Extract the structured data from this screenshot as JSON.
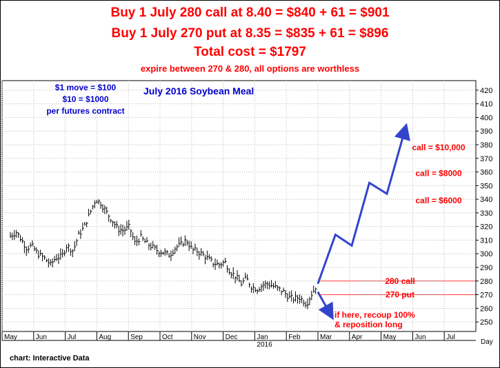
{
  "header": {
    "line1": "Buy 1 July 280 call at 8.40 = $840 + 61 = $901",
    "line2": "Buy 1 July 270 put at 8.35 = $835 + 61 = $896",
    "line3": "Total cost = $1797",
    "line4": "expire between 270 & 280, all options are worthless"
  },
  "footer": {
    "credit": "chart: Interactive Data"
  },
  "colors": {
    "red": "#ff0000",
    "blue": "#0000cc",
    "arrow": "#3344cc",
    "grid": "#b8b8b8"
  },
  "chart_data": {
    "type": "ohlc",
    "title": "July 2016 Soybean Meal",
    "note_lines": [
      "$1 move = $100",
      "$10 = $1000",
      "per futures contract"
    ],
    "y_ticks": [
      250,
      260,
      270,
      280,
      290,
      300,
      310,
      320,
      330,
      340,
      350,
      360,
      370,
      380,
      390,
      400,
      410,
      420
    ],
    "ylim": [
      243,
      427
    ],
    "x_months": [
      "May",
      "Jun",
      "Jul",
      "Aug",
      "Sep",
      "Oct",
      "Nov",
      "Dec",
      "Jan",
      "Feb",
      "Mar",
      "Apr",
      "May",
      "Jun",
      "Jul"
    ],
    "year_label": "2016",
    "x_axis_unit": "Day",
    "price_path": [
      [
        0,
        313
      ],
      [
        5,
        316
      ],
      [
        9,
        310
      ],
      [
        13,
        304
      ],
      [
        17,
        306
      ],
      [
        22,
        300
      ],
      [
        27,
        297
      ],
      [
        32,
        292
      ],
      [
        36,
        297
      ],
      [
        41,
        298
      ],
      [
        45,
        306
      ],
      [
        50,
        302
      ],
      [
        54,
        313
      ],
      [
        59,
        320
      ],
      [
        63,
        329
      ],
      [
        68,
        340
      ],
      [
        72,
        337
      ],
      [
        77,
        330
      ],
      [
        80,
        326
      ],
      [
        86,
        318
      ],
      [
        90,
        317
      ],
      [
        95,
        320
      ],
      [
        99,
        308
      ],
      [
        104,
        312
      ],
      [
        108,
        308
      ],
      [
        113,
        305
      ],
      [
        118,
        302
      ],
      [
        122,
        301
      ],
      [
        127,
        299
      ],
      [
        131,
        304
      ],
      [
        136,
        307
      ],
      [
        140,
        310
      ],
      [
        145,
        303
      ],
      [
        149,
        302
      ],
      [
        154,
        299
      ],
      [
        158,
        296
      ],
      [
        162,
        293
      ],
      [
        166,
        292
      ],
      [
        171,
        294
      ],
      [
        175,
        287
      ],
      [
        180,
        283
      ],
      [
        184,
        278
      ],
      [
        188,
        282
      ],
      [
        192,
        276
      ],
      [
        197,
        274
      ],
      [
        201,
        277
      ],
      [
        205,
        278
      ],
      [
        210,
        276
      ],
      [
        214,
        274
      ],
      [
        218,
        272
      ],
      [
        222,
        268
      ],
      [
        226,
        267
      ],
      [
        230,
        268
      ],
      [
        233,
        266
      ],
      [
        236,
        263
      ],
      [
        238,
        267
      ],
      [
        241,
        272
      ],
      [
        244,
        277
      ]
    ],
    "bar_range": 6,
    "projection": [
      [
        245,
        278
      ],
      [
        259,
        314
      ],
      [
        272,
        306
      ],
      [
        286,
        352
      ],
      [
        300,
        344
      ],
      [
        315,
        393
      ]
    ],
    "down_arrow": [
      [
        245,
        272
      ],
      [
        256,
        254
      ]
    ],
    "levels": [
      {
        "label": "280 call",
        "value": 280
      },
      {
        "label": "270 put",
        "value": 270
      }
    ],
    "annotations": [
      {
        "text": "call = $10,000",
        "value": 378
      },
      {
        "text": "call = $8000",
        "value": 359
      },
      {
        "text": "call = $6000",
        "value": 339
      }
    ],
    "recoup_note": [
      "if here, recoup 100%",
      "& reposition long"
    ]
  }
}
